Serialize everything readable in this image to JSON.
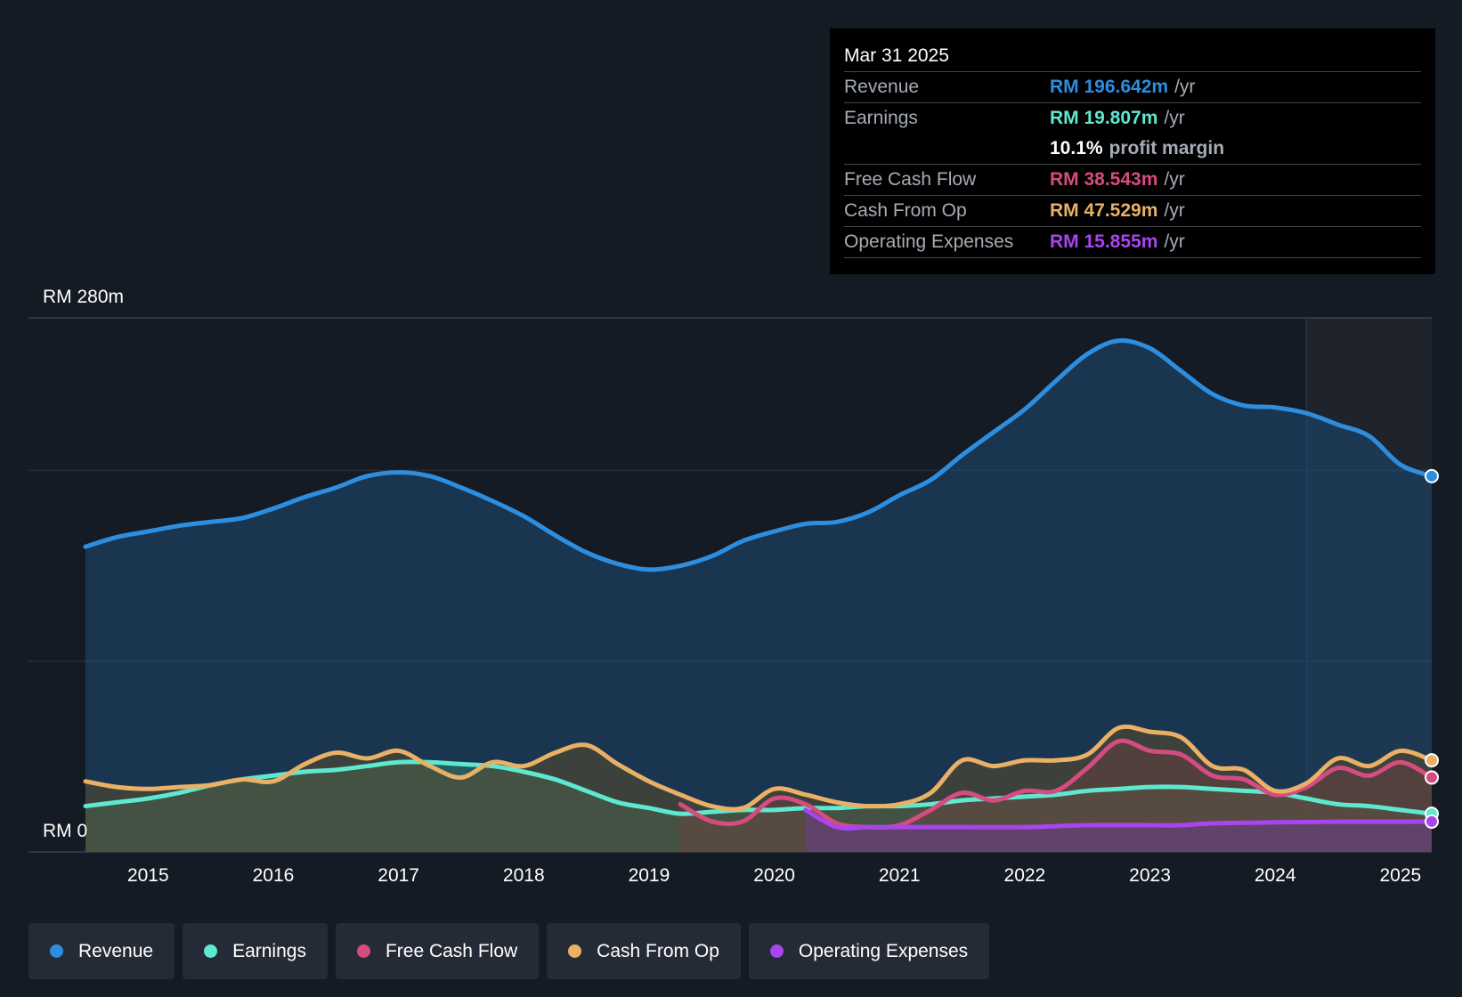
{
  "tooltip": {
    "date": "Mar 31 2025",
    "rows": [
      {
        "label": "Revenue",
        "value": "RM 196.642m",
        "unit": "/yr",
        "color": "#2d8ee0"
      },
      {
        "label": "Earnings",
        "value": "RM 19.807m",
        "unit": "/yr",
        "color": "#5ee8d0"
      },
      {
        "label": "",
        "value": "10.1%",
        "unit": "profit margin",
        "color": "#ffffff"
      },
      {
        "label": "Free Cash Flow",
        "value": "RM 38.543m",
        "unit": "/yr",
        "color": "#d44c80"
      },
      {
        "label": "Cash From Op",
        "value": "RM 47.529m",
        "unit": "/yr",
        "color": "#e9b066"
      },
      {
        "label": "Operating Expenses",
        "value": "RM 15.855m",
        "unit": "/yr",
        "color": "#a845ee"
      }
    ]
  },
  "legend": [
    {
      "label": "Revenue",
      "color": "#2d8ee0"
    },
    {
      "label": "Earnings",
      "color": "#5ee8d0"
    },
    {
      "label": "Free Cash Flow",
      "color": "#d44c80"
    },
    {
      "label": "Cash From Op",
      "color": "#e9b066"
    },
    {
      "label": "Operating Expenses",
      "color": "#a845ee"
    }
  ],
  "chart_data": {
    "type": "area",
    "title": "",
    "ylabel_top": "RM 280m",
    "ylabel_bottom": "RM 0",
    "ylim": [
      0,
      280
    ],
    "xlim": [
      2014.5,
      2025.25
    ],
    "xticks": [
      2015,
      2016,
      2017,
      2018,
      2019,
      2020,
      2021,
      2022,
      2023,
      2024,
      2025
    ],
    "xtick_labels": [
      "2015",
      "2016",
      "2017",
      "2018",
      "2019",
      "2020",
      "2021",
      "2022",
      "2023",
      "2024",
      "2025"
    ],
    "forecast_start": 2024.25,
    "series": [
      {
        "name": "Revenue",
        "color": "#2d8ee0",
        "points": [
          [
            2014.5,
            160
          ],
          [
            2014.75,
            165
          ],
          [
            2015,
            168
          ],
          [
            2015.25,
            171
          ],
          [
            2015.5,
            173
          ],
          [
            2015.75,
            175
          ],
          [
            2016,
            180
          ],
          [
            2016.25,
            186
          ],
          [
            2016.5,
            191
          ],
          [
            2016.75,
            197
          ],
          [
            2017,
            199
          ],
          [
            2017.25,
            197
          ],
          [
            2017.5,
            191
          ],
          [
            2017.75,
            184
          ],
          [
            2018,
            176
          ],
          [
            2018.25,
            166
          ],
          [
            2018.5,
            157
          ],
          [
            2018.75,
            151
          ],
          [
            2019,
            148
          ],
          [
            2019.25,
            150
          ],
          [
            2019.5,
            155
          ],
          [
            2019.75,
            163
          ],
          [
            2020,
            168
          ],
          [
            2020.25,
            172
          ],
          [
            2020.5,
            173
          ],
          [
            2020.75,
            178
          ],
          [
            2021,
            187
          ],
          [
            2021.25,
            195
          ],
          [
            2021.5,
            208
          ],
          [
            2021.75,
            220
          ],
          [
            2022,
            232
          ],
          [
            2022.25,
            247
          ],
          [
            2022.5,
            261
          ],
          [
            2022.75,
            268
          ],
          [
            2023,
            264
          ],
          [
            2023.25,
            252
          ],
          [
            2023.5,
            240
          ],
          [
            2023.75,
            234
          ],
          [
            2024,
            233
          ],
          [
            2024.25,
            230
          ],
          [
            2024.5,
            224
          ],
          [
            2024.75,
            218
          ],
          [
            2025,
            203
          ],
          [
            2025.25,
            197
          ]
        ]
      },
      {
        "name": "Earnings",
        "color": "#5ee8d0",
        "points": [
          [
            2014.5,
            24
          ],
          [
            2014.75,
            26
          ],
          [
            2015,
            28
          ],
          [
            2015.25,
            31
          ],
          [
            2015.5,
            35
          ],
          [
            2015.75,
            38
          ],
          [
            2016,
            40
          ],
          [
            2016.25,
            42
          ],
          [
            2016.5,
            43
          ],
          [
            2016.75,
            45
          ],
          [
            2017,
            47
          ],
          [
            2017.25,
            47
          ],
          [
            2017.5,
            46
          ],
          [
            2017.75,
            45
          ],
          [
            2018,
            42
          ],
          [
            2018.25,
            38
          ],
          [
            2018.5,
            32
          ],
          [
            2018.75,
            26
          ],
          [
            2019,
            23
          ],
          [
            2019.25,
            20
          ],
          [
            2019.5,
            21
          ],
          [
            2019.75,
            22
          ],
          [
            2020,
            22
          ],
          [
            2020.25,
            23
          ],
          [
            2020.5,
            23
          ],
          [
            2020.75,
            24
          ],
          [
            2021,
            24
          ],
          [
            2021.25,
            25
          ],
          [
            2021.5,
            27
          ],
          [
            2021.75,
            28
          ],
          [
            2022,
            29
          ],
          [
            2022.25,
            30
          ],
          [
            2022.5,
            32
          ],
          [
            2022.75,
            33
          ],
          [
            2023,
            34
          ],
          [
            2023.25,
            34
          ],
          [
            2023.5,
            33
          ],
          [
            2023.75,
            32
          ],
          [
            2024,
            31
          ],
          [
            2024.25,
            28
          ],
          [
            2024.5,
            25
          ],
          [
            2024.75,
            24
          ],
          [
            2025,
            22
          ],
          [
            2025.25,
            20
          ]
        ]
      },
      {
        "name": "Free Cash Flow",
        "color": "#d44c80",
        "points": [
          [
            2019.25,
            25
          ],
          [
            2019.5,
            16
          ],
          [
            2019.75,
            16
          ],
          [
            2020,
            28
          ],
          [
            2020.25,
            25
          ],
          [
            2020.5,
            15
          ],
          [
            2020.75,
            13
          ],
          [
            2021,
            14
          ],
          [
            2021.25,
            22
          ],
          [
            2021.5,
            31
          ],
          [
            2021.75,
            27
          ],
          [
            2022,
            32
          ],
          [
            2022.25,
            32
          ],
          [
            2022.5,
            44
          ],
          [
            2022.75,
            58
          ],
          [
            2023,
            53
          ],
          [
            2023.25,
            51
          ],
          [
            2023.5,
            40
          ],
          [
            2023.75,
            38
          ],
          [
            2024,
            30
          ],
          [
            2024.25,
            34
          ],
          [
            2024.5,
            44
          ],
          [
            2024.75,
            40
          ],
          [
            2025,
            47
          ],
          [
            2025.25,
            39
          ]
        ]
      },
      {
        "name": "Cash From Op",
        "color": "#e9b066",
        "points": [
          [
            2014.5,
            37
          ],
          [
            2014.75,
            34
          ],
          [
            2015,
            33
          ],
          [
            2015.25,
            34
          ],
          [
            2015.5,
            35
          ],
          [
            2015.75,
            38
          ],
          [
            2016,
            37
          ],
          [
            2016.25,
            46
          ],
          [
            2016.5,
            52
          ],
          [
            2016.75,
            49
          ],
          [
            2017,
            53
          ],
          [
            2017.25,
            45
          ],
          [
            2017.5,
            39
          ],
          [
            2017.75,
            47
          ],
          [
            2018,
            45
          ],
          [
            2018.25,
            52
          ],
          [
            2018.5,
            56
          ],
          [
            2018.75,
            46
          ],
          [
            2019,
            37
          ],
          [
            2019.25,
            30
          ],
          [
            2019.5,
            24
          ],
          [
            2019.75,
            23
          ],
          [
            2020,
            33
          ],
          [
            2020.25,
            30
          ],
          [
            2020.5,
            26
          ],
          [
            2020.75,
            24
          ],
          [
            2021,
            25
          ],
          [
            2021.25,
            31
          ],
          [
            2021.5,
            48
          ],
          [
            2021.75,
            45
          ],
          [
            2022,
            48
          ],
          [
            2022.25,
            48
          ],
          [
            2022.5,
            51
          ],
          [
            2022.75,
            65
          ],
          [
            2023,
            63
          ],
          [
            2023.25,
            60
          ],
          [
            2023.5,
            45
          ],
          [
            2023.75,
            43
          ],
          [
            2024,
            32
          ],
          [
            2024.25,
            36
          ],
          [
            2024.5,
            49
          ],
          [
            2024.75,
            45
          ],
          [
            2025,
            53
          ],
          [
            2025.25,
            48
          ]
        ]
      },
      {
        "name": "Operating Expenses",
        "color": "#a845ee",
        "points": [
          [
            2020.25,
            22
          ],
          [
            2020.5,
            13
          ],
          [
            2020.75,
            13
          ],
          [
            2021,
            13
          ],
          [
            2021.5,
            13
          ],
          [
            2022,
            13
          ],
          [
            2022.5,
            14
          ],
          [
            2023,
            14
          ],
          [
            2023.25,
            14
          ],
          [
            2023.5,
            15
          ],
          [
            2024,
            15.5
          ],
          [
            2024.5,
            15.8
          ],
          [
            2025,
            15.8
          ],
          [
            2025.25,
            15.9
          ]
        ]
      }
    ]
  }
}
